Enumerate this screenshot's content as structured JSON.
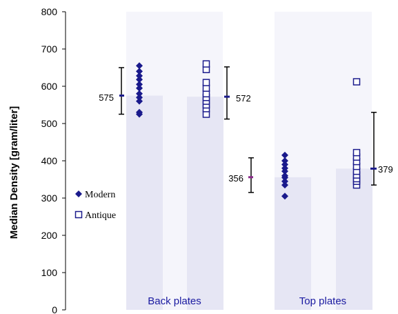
{
  "chart_data": {
    "type": "bar",
    "title": "",
    "xlabel": "",
    "ylabel": "Median Density [gram/liter]",
    "ylim": [
      0,
      800
    ],
    "yticks": [
      0,
      100,
      200,
      300,
      400,
      500,
      600,
      700,
      800
    ],
    "grid": false,
    "legend_position": "left-middle",
    "categories": [
      "Back plates",
      "Top plates"
    ],
    "series": [
      {
        "name": "Modern",
        "marker": "diamond",
        "color": "#1a1a8c",
        "medians": [
          575,
          356
        ],
        "median_labels": [
          "575",
          "356"
        ],
        "error_ranges": [
          [
            525,
            650
          ],
          [
            315,
            408
          ]
        ],
        "points": [
          [
            525,
            530,
            560,
            570,
            580,
            595,
            605,
            618,
            628,
            640,
            655
          ],
          [
            305,
            335,
            345,
            355,
            360,
            372,
            380,
            390,
            400,
            415
          ]
        ]
      },
      {
        "name": "Antique",
        "marker": "square-open",
        "color": "#1a1a8c",
        "medians": [
          572,
          379
        ],
        "median_labels": [
          "572",
          "379"
        ],
        "error_ranges": [
          [
            512,
            652
          ],
          [
            335,
            530
          ]
        ],
        "points": [
          [
            525,
            540,
            550,
            560,
            570,
            580,
            595,
            610,
            645,
            660
          ],
          [
            335,
            345,
            352,
            362,
            372,
            385,
            398,
            410,
            422,
            612
          ]
        ]
      }
    ]
  },
  "colors": {
    "bar_fill": "#e6e6f4",
    "marker": "#1a1a8c",
    "median_tick_modern_back": "#1a1a8c",
    "median_tick_modern_top": "#8c2a8c",
    "error_bar": "#000000"
  }
}
